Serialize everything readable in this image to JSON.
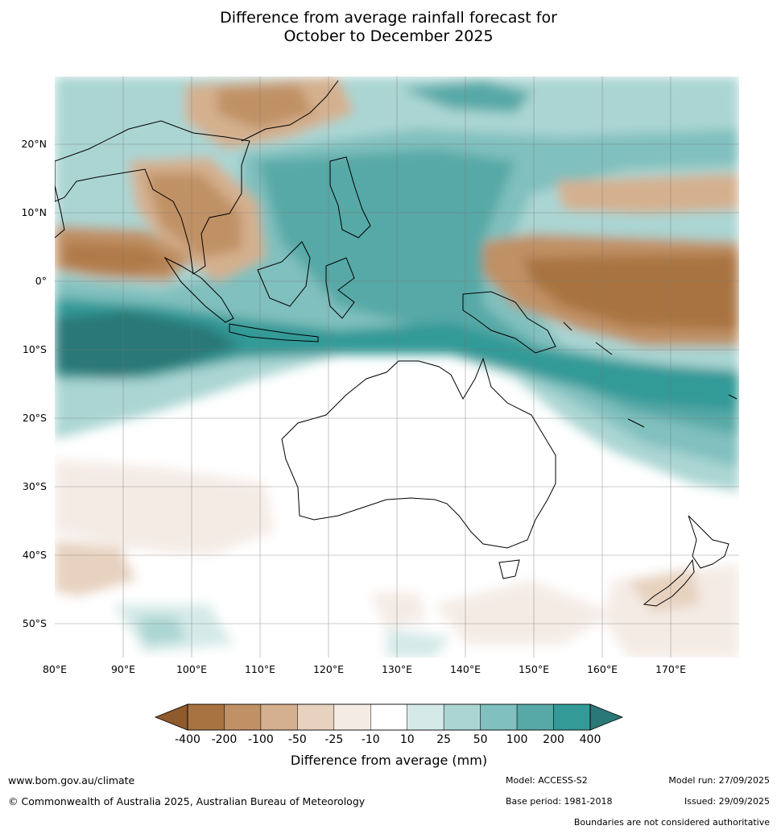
{
  "title": {
    "line1": "Difference from average rainfall forecast for",
    "line2": "October to December 2025"
  },
  "map": {
    "longitude_labels": [
      "80°E",
      "90°E",
      "100°E",
      "110°E",
      "120°E",
      "130°E",
      "140°E",
      "150°E",
      "160°E",
      "170°E"
    ],
    "latitude_labels": [
      "20°N",
      "10°N",
      "0°",
      "10°S",
      "20°S",
      "30°S",
      "40°S",
      "50°S"
    ],
    "region": "Australia, Indonesia, Maritime Continent and Western Pacific"
  },
  "legend": {
    "title": "Difference from average (mm)",
    "tick_labels": [
      "-400",
      "-200",
      "-100",
      "-50",
      "-25",
      "-10",
      "10",
      "25",
      "50",
      "100",
      "200",
      "400"
    ],
    "colors": [
      "#8f5a2c",
      "#a87340",
      "#c09165",
      "#d4b08e",
      "#e7d2bf",
      "#f4ebe5",
      "#ffffff",
      "#d5eae8",
      "#aad5d3",
      "#80c0be",
      "#57a9a7",
      "#339a97",
      "#2a7877"
    ]
  },
  "footer": {
    "website": "www.bom.gov.au/climate",
    "copyright": "© Commonwealth of Australia 2025, Australian Bureau of Meteorology",
    "model": "Model: ACCESS-S2",
    "base_period": "Base period: 1981-2018",
    "model_run": "Model run: 27/09/2025",
    "issued": "Issued: 29/09/2025",
    "boundaries": "Boundaries are not considered authoritative"
  }
}
